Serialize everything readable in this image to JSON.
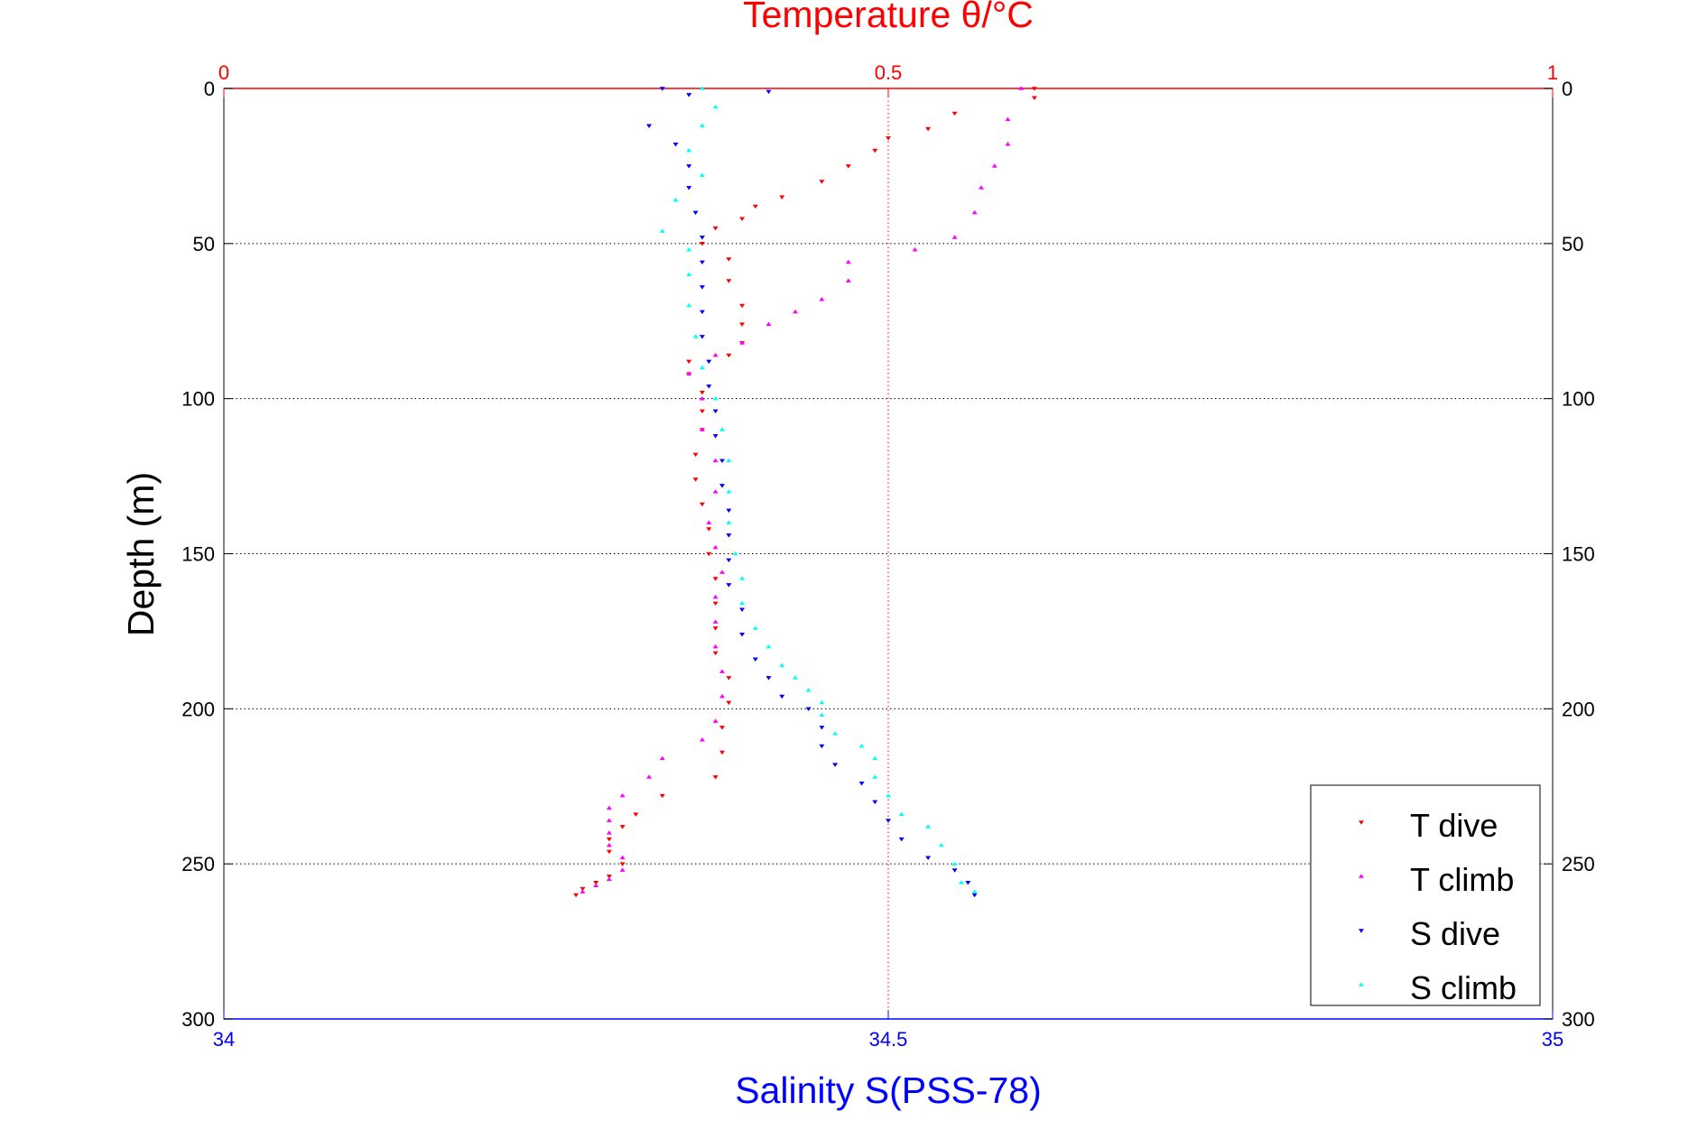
{
  "chart_data": {
    "type": "scatter",
    "title": "Temperature θ/°C",
    "xlabel_bottom": "Salinity S(PSS-78)",
    "ylabel": "Depth (m)",
    "y_axis": {
      "range": [
        0,
        300
      ],
      "reversed": true,
      "ticks": [
        "0",
        "50",
        "100",
        "150",
        "200",
        "250",
        "300"
      ],
      "tick_values": [
        0,
        50,
        100,
        150,
        200,
        250,
        300
      ]
    },
    "x_axis_top": {
      "label": "Temperature θ/°C",
      "range": [
        0,
        1
      ],
      "ticks": [
        "0",
        "0.5",
        "1"
      ],
      "tick_values": [
        0,
        0.5,
        1
      ],
      "color": "#ff0000"
    },
    "x_axis_bottom": {
      "label": "Salinity S(PSS-78)",
      "range": [
        34,
        35
      ],
      "ticks": [
        "34",
        "34.5",
        "35"
      ],
      "tick_values": [
        34,
        34.5,
        35
      ],
      "color": "#0000ff"
    },
    "grid": {
      "horizontal": true,
      "vertical_at": [
        0.5
      ]
    },
    "legend": {
      "placement": "bottom-right",
      "entries": [
        "T dive",
        "T climb",
        "S dive",
        "S climb"
      ]
    },
    "series": [
      {
        "name": "T dive",
        "axis": "temperature",
        "marker": "triangle-down",
        "color": "#ff0000",
        "points": [
          [
            0.61,
            0
          ],
          [
            0.61,
            3
          ],
          [
            0.55,
            8
          ],
          [
            0.53,
            13
          ],
          [
            0.5,
            16
          ],
          [
            0.49,
            20
          ],
          [
            0.47,
            25
          ],
          [
            0.45,
            30
          ],
          [
            0.42,
            35
          ],
          [
            0.4,
            38
          ],
          [
            0.39,
            42
          ],
          [
            0.37,
            45
          ],
          [
            0.36,
            50
          ],
          [
            0.38,
            55
          ],
          [
            0.38,
            62
          ],
          [
            0.39,
            70
          ],
          [
            0.39,
            76
          ],
          [
            0.39,
            82
          ],
          [
            0.38,
            86
          ],
          [
            0.35,
            88
          ],
          [
            0.35,
            92
          ],
          [
            0.36,
            98
          ],
          [
            0.36,
            104
          ],
          [
            0.36,
            110
          ],
          [
            0.355,
            118
          ],
          [
            0.355,
            126
          ],
          [
            0.36,
            134
          ],
          [
            0.365,
            142
          ],
          [
            0.365,
            150
          ],
          [
            0.37,
            158
          ],
          [
            0.37,
            166
          ],
          [
            0.37,
            174
          ],
          [
            0.37,
            182
          ],
          [
            0.38,
            190
          ],
          [
            0.38,
            198
          ],
          [
            0.375,
            206
          ],
          [
            0.375,
            214
          ],
          [
            0.37,
            222
          ],
          [
            0.33,
            228
          ],
          [
            0.31,
            234
          ],
          [
            0.3,
            238
          ],
          [
            0.29,
            242
          ],
          [
            0.29,
            246
          ],
          [
            0.3,
            250
          ],
          [
            0.29,
            254
          ],
          [
            0.28,
            256
          ],
          [
            0.27,
            258
          ],
          [
            0.265,
            260
          ]
        ]
      },
      {
        "name": "T climb",
        "axis": "temperature",
        "marker": "triangle-up",
        "color": "#ff00ff",
        "points": [
          [
            0.6,
            0
          ],
          [
            0.59,
            10
          ],
          [
            0.59,
            18
          ],
          [
            0.58,
            25
          ],
          [
            0.57,
            32
          ],
          [
            0.565,
            40
          ],
          [
            0.55,
            48
          ],
          [
            0.52,
            52
          ],
          [
            0.47,
            56
          ],
          [
            0.47,
            62
          ],
          [
            0.45,
            68
          ],
          [
            0.43,
            72
          ],
          [
            0.41,
            76
          ],
          [
            0.39,
            82
          ],
          [
            0.37,
            86
          ],
          [
            0.35,
            92
          ],
          [
            0.36,
            100
          ],
          [
            0.36,
            110
          ],
          [
            0.37,
            120
          ],
          [
            0.37,
            130
          ],
          [
            0.365,
            140
          ],
          [
            0.37,
            148
          ],
          [
            0.375,
            156
          ],
          [
            0.37,
            164
          ],
          [
            0.37,
            172
          ],
          [
            0.37,
            180
          ],
          [
            0.375,
            188
          ],
          [
            0.375,
            196
          ],
          [
            0.37,
            204
          ],
          [
            0.36,
            210
          ],
          [
            0.33,
            216
          ],
          [
            0.32,
            222
          ],
          [
            0.3,
            228
          ],
          [
            0.29,
            232
          ],
          [
            0.29,
            236
          ],
          [
            0.29,
            240
          ],
          [
            0.29,
            244
          ],
          [
            0.3,
            248
          ],
          [
            0.3,
            252
          ],
          [
            0.29,
            255
          ],
          [
            0.28,
            257
          ],
          [
            0.27,
            259
          ]
        ]
      },
      {
        "name": "S dive",
        "axis": "salinity",
        "marker": "triangle-down",
        "color": "#0000ff",
        "points": [
          [
            34.33,
            0
          ],
          [
            34.35,
            2
          ],
          [
            34.41,
            1
          ],
          [
            34.32,
            12
          ],
          [
            34.34,
            18
          ],
          [
            34.35,
            25
          ],
          [
            34.35,
            32
          ],
          [
            34.355,
            40
          ],
          [
            34.36,
            48
          ],
          [
            34.36,
            56
          ],
          [
            34.36,
            64
          ],
          [
            34.36,
            72
          ],
          [
            34.36,
            80
          ],
          [
            34.365,
            88
          ],
          [
            34.365,
            96
          ],
          [
            34.37,
            104
          ],
          [
            34.37,
            112
          ],
          [
            34.375,
            120
          ],
          [
            34.375,
            128
          ],
          [
            34.38,
            136
          ],
          [
            34.38,
            144
          ],
          [
            34.38,
            152
          ],
          [
            34.38,
            160
          ],
          [
            34.39,
            168
          ],
          [
            34.39,
            176
          ],
          [
            34.4,
            184
          ],
          [
            34.41,
            190
          ],
          [
            34.42,
            196
          ],
          [
            34.44,
            200
          ],
          [
            34.45,
            206
          ],
          [
            34.45,
            212
          ],
          [
            34.46,
            218
          ],
          [
            34.48,
            224
          ],
          [
            34.49,
            230
          ],
          [
            34.5,
            236
          ],
          [
            34.51,
            242
          ],
          [
            34.53,
            248
          ],
          [
            34.55,
            252
          ],
          [
            34.56,
            256
          ],
          [
            34.565,
            260
          ]
        ]
      },
      {
        "name": "S climb",
        "axis": "salinity",
        "marker": "triangle-up",
        "color": "#00ffff",
        "points": [
          [
            34.36,
            0
          ],
          [
            34.37,
            6
          ],
          [
            34.36,
            12
          ],
          [
            34.35,
            20
          ],
          [
            34.36,
            28
          ],
          [
            34.34,
            36
          ],
          [
            34.33,
            46
          ],
          [
            34.35,
            52
          ],
          [
            34.35,
            60
          ],
          [
            34.35,
            70
          ],
          [
            34.355,
            80
          ],
          [
            34.36,
            90
          ],
          [
            34.37,
            100
          ],
          [
            34.375,
            110
          ],
          [
            34.38,
            120
          ],
          [
            34.38,
            130
          ],
          [
            34.38,
            140
          ],
          [
            34.385,
            150
          ],
          [
            34.39,
            158
          ],
          [
            34.39,
            166
          ],
          [
            34.4,
            174
          ],
          [
            34.41,
            180
          ],
          [
            34.42,
            186
          ],
          [
            34.43,
            190
          ],
          [
            34.44,
            194
          ],
          [
            34.45,
            198
          ],
          [
            34.45,
            202
          ],
          [
            34.46,
            208
          ],
          [
            34.48,
            212
          ],
          [
            34.49,
            216
          ],
          [
            34.49,
            222
          ],
          [
            34.5,
            228
          ],
          [
            34.51,
            234
          ],
          [
            34.53,
            238
          ],
          [
            34.54,
            244
          ],
          [
            34.55,
            250
          ],
          [
            34.555,
            256
          ],
          [
            34.565,
            259
          ]
        ]
      }
    ]
  }
}
